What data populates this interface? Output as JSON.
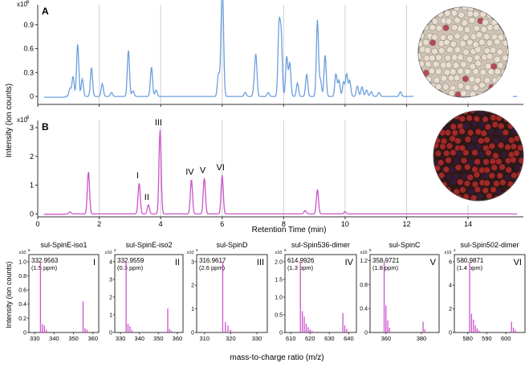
{
  "chart_data": [
    {
      "type": "line",
      "panel": "A",
      "xlabel": "Retention Time (min)",
      "ylabel": "Intensity (ion counts)",
      "y_multiplier": "x10",
      "y_exponent": "6",
      "xlim": [
        0,
        15.8
      ],
      "ylim": [
        -0.1,
        1.15
      ],
      "xticks": [
        0,
        2,
        4,
        6,
        8,
        10,
        12,
        14
      ],
      "yticks": [
        0,
        0.3,
        0.6,
        0.9
      ],
      "ytick_labels": [
        "0",
        "0.3",
        "0.6",
        "0.9"
      ],
      "grid": "vertical",
      "color": "#6b9fde",
      "peaks": [
        [
          1.05,
          0.1
        ],
        [
          1.15,
          0.25
        ],
        [
          1.3,
          0.66
        ],
        [
          1.45,
          0.22
        ],
        [
          1.75,
          0.36
        ],
        [
          2.1,
          0.16
        ],
        [
          2.4,
          0.05
        ],
        [
          2.95,
          0.58
        ],
        [
          3.1,
          0.07
        ],
        [
          3.7,
          0.37
        ],
        [
          3.85,
          0.08
        ],
        [
          5.88,
          0.28
        ],
        [
          5.98,
          0.68
        ],
        [
          6.02,
          0.96
        ],
        [
          6.75,
          0.05
        ],
        [
          7.05,
          0.14
        ],
        [
          7.1,
          0.48
        ],
        [
          7.5,
          0.05
        ],
        [
          7.85,
          0.86
        ],
        [
          7.92,
          0.74
        ],
        [
          8.1,
          0.5
        ],
        [
          8.2,
          0.42
        ],
        [
          8.45,
          0.17
        ],
        [
          8.75,
          0.28
        ],
        [
          9.1,
          0.96
        ],
        [
          9.2,
          0.2
        ],
        [
          9.35,
          0.52
        ],
        [
          9.7,
          0.28
        ],
        [
          9.8,
          0.2
        ],
        [
          9.95,
          0.18
        ],
        [
          10.05,
          0.28
        ],
        [
          10.15,
          0.2
        ],
        [
          10.4,
          0.13
        ],
        [
          10.55,
          0.12
        ],
        [
          10.7,
          0.08
        ],
        [
          10.85,
          0.06
        ],
        [
          11.1,
          0.05
        ],
        [
          11.8,
          0.06
        ],
        [
          12.3,
          0.07
        ],
        [
          12.7,
          0.04
        ],
        [
          13.1,
          0.06
        ],
        [
          13.6,
          0.15
        ],
        [
          14.6,
          0.08
        ],
        [
          14.9,
          0.04
        ],
        [
          15.2,
          0.04
        ]
      ]
    },
    {
      "type": "line",
      "panel": "B",
      "xlabel": "Retention Time (min)",
      "ylabel": "Intensity (ion counts)",
      "y_multiplier": "x10",
      "y_exponent": "6",
      "xlim": [
        0,
        15.8
      ],
      "ylim": [
        -0.1,
        3.25
      ],
      "xticks": [
        0,
        2,
        4,
        6,
        8,
        10,
        12,
        14
      ],
      "xtick_labels": [
        "0",
        "2",
        "4",
        "6",
        "8",
        "10",
        "12",
        "14"
      ],
      "yticks": [
        0,
        1,
        2,
        3
      ],
      "ytick_labels": [
        "0",
        "1",
        "2",
        "3"
      ],
      "grid": "vertical",
      "color": "#cc55cc",
      "peaks": [
        [
          1.05,
          0.07
        ],
        [
          1.65,
          1.47
        ],
        [
          3.3,
          1.07
        ],
        [
          3.6,
          0.32
        ],
        [
          3.98,
          2.92
        ],
        [
          5.0,
          1.2
        ],
        [
          5.42,
          1.25
        ],
        [
          6.0,
          1.35
        ],
        [
          8.7,
          0.12
        ],
        [
          9.1,
          0.85
        ],
        [
          10.0,
          0.08
        ]
      ],
      "annotations": [
        {
          "label": "I",
          "x": 3.3,
          "y": 1.07
        },
        {
          "label": "II",
          "x": 3.6,
          "y": 0.32
        },
        {
          "label": "III",
          "x": 3.98,
          "y": 2.92
        },
        {
          "label": "IV",
          "x": 5.0,
          "y": 1.2
        },
        {
          "label": "V",
          "x": 5.42,
          "y": 1.25
        },
        {
          "label": "VI",
          "x": 6.0,
          "y": 1.35
        }
      ]
    },
    {
      "type": "bar",
      "panel": "I",
      "title": "sul-SpinE-iso1",
      "peak_mz": "332.9563",
      "ppm": "(1.5 ppm)",
      "y_multiplier": "x10",
      "y_exponent": "5",
      "xlim": [
        327,
        363
      ],
      "xticks": [
        330,
        340,
        350,
        360
      ],
      "ylim": [
        0,
        1.1
      ],
      "yticks": [
        0,
        0.2,
        0.4,
        0.6,
        0.8,
        1.0
      ],
      "ytick_labels": [
        "0",
        "0.2",
        "0.4",
        "0.6",
        "0.8",
        "1.0"
      ],
      "x": [
        332.96,
        333.96,
        334.96,
        335.95,
        354.94,
        355.94,
        356.94
      ],
      "values": [
        1.0,
        0.12,
        0.1,
        0.04,
        0.44,
        0.06,
        0.04
      ]
    },
    {
      "type": "bar",
      "panel": "II",
      "title": "sul-SpinE-iso2",
      "peak_mz": "332.9559",
      "ppm": "(0.3 ppm)",
      "y_multiplier": "x10",
      "y_exponent": "4",
      "xlim": [
        327,
        363
      ],
      "xticks": [
        330,
        340,
        350,
        360
      ],
      "ylim": [
        0,
        4.4
      ],
      "yticks": [
        0,
        1,
        2,
        3,
        4
      ],
      "ytick_labels": [
        "0",
        "1",
        "2",
        "3",
        "4"
      ],
      "x": [
        332.96,
        333.96,
        334.96,
        335.95,
        354.94,
        355.94,
        356.94
      ],
      "values": [
        4.0,
        0.5,
        0.35,
        0.15,
        1.35,
        0.2,
        0.1
      ]
    },
    {
      "type": "bar",
      "panel": "III",
      "title": "sul-SpinD",
      "peak_mz": "316.9617",
      "ppm": "(2.6 ppm)",
      "y_multiplier": "x10",
      "y_exponent": "5",
      "xlim": [
        307,
        334
      ],
      "xticks": [
        310,
        320,
        330
      ],
      "ylim": [
        0,
        3.3
      ],
      "yticks": [
        0,
        1,
        2,
        3
      ],
      "ytick_labels": [
        "0",
        "1",
        "2",
        "3"
      ],
      "x": [
        316.96,
        317.96,
        318.96,
        319.96
      ],
      "values": [
        3.0,
        0.45,
        0.3,
        0.12
      ]
    },
    {
      "type": "bar",
      "panel": "IV",
      "title": "sul-Spin536-dimer",
      "peak_mz": "614.9926",
      "ppm": "(1.3 ppm)",
      "y_multiplier": "x10",
      "y_exponent": "5",
      "xlim": [
        607,
        644
      ],
      "xticks": [
        610,
        620,
        630,
        640
      ],
      "ylim": [
        0,
        2.2
      ],
      "yticks": [
        0,
        0.5,
        1.0,
        1.5,
        2.0
      ],
      "ytick_labels": [
        "0",
        "0.5",
        "1.0",
        "1.5",
        "2.0"
      ],
      "x": [
        614.99,
        615.99,
        616.99,
        617.99,
        618.99,
        619.99,
        620.99,
        636.98,
        637.98,
        638.98
      ],
      "values": [
        2.0,
        0.6,
        0.45,
        0.25,
        0.15,
        0.08,
        0.05,
        0.55,
        0.2,
        0.1
      ]
    },
    {
      "type": "bar",
      "panel": "V",
      "title": "sul-SpinC",
      "peak_mz": "358.9721",
      "ppm": "(1.8 ppm)",
      "y_multiplier": "x10",
      "y_exponent": "5",
      "xlim": [
        351,
        390
      ],
      "xticks": [
        360,
        380
      ],
      "ylim": [
        0,
        1.3
      ],
      "yticks": [
        0,
        0.4,
        0.8,
        1.2
      ],
      "ytick_labels": [
        "0",
        "0.4",
        "0.8",
        "1.2"
      ],
      "x": [
        358.97,
        359.97,
        360.97,
        361.97,
        380.95,
        381.95
      ],
      "values": [
        1.2,
        0.45,
        0.2,
        0.08,
        0.18,
        0.05
      ]
    },
    {
      "type": "bar",
      "panel": "VI",
      "title": "sul-Spin502-dimer",
      "peak_mz": "580.9871",
      "ppm": "(1.4 ppm)",
      "y_multiplier": "x10",
      "y_exponent": "4",
      "xlim": [
        573,
        610
      ],
      "xticks": [
        580,
        590,
        600
      ],
      "ylim": [
        0,
        6.6
      ],
      "yticks": [
        0,
        2,
        4,
        6
      ],
      "ytick_labels": [
        "0",
        "2",
        "4",
        "6"
      ],
      "x": [
        580.99,
        581.99,
        582.99,
        583.99,
        584.99,
        585.99,
        602.97,
        603.97,
        604.97
      ],
      "values": [
        6.0,
        1.6,
        1.1,
        0.6,
        0.35,
        0.15,
        0.9,
        0.4,
        0.2
      ]
    }
  ],
  "labels": {
    "panel_a": "A",
    "panel_b": "B",
    "rt_xlabel": "Retention Time (min)",
    "ylabel_top": "Intensity (ion counts)",
    "ylabel_bottom": "Intensity (ion counts)",
    "ms_xlabel": "mass-to-charge ratio (m/z)"
  },
  "images": {
    "top": {
      "description_color": "#d8c9b7"
    },
    "bottom": {
      "description_color": "#8a2222"
    }
  }
}
